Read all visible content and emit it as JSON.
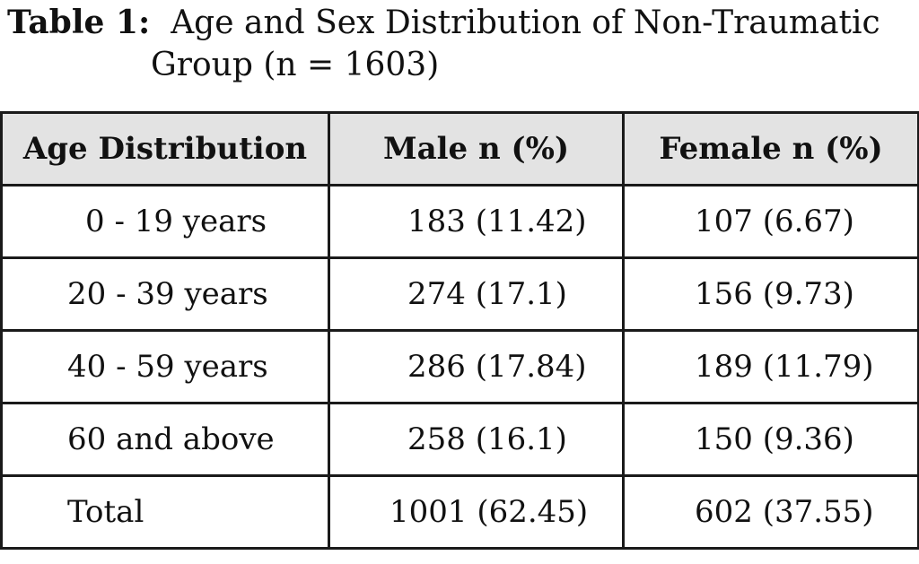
{
  "caption": {
    "label": "Table 1:",
    "title_line1": "Age and Sex Distribution of Non-Traumatic",
    "title_line2": "Group  (n = 1603)"
  },
  "table": {
    "headers": [
      "Age Distribution",
      "Male n (%)",
      "Female n (%)"
    ],
    "rows": [
      {
        "age": "0 - 19 years",
        "male": "183 (11.42)",
        "female": "107 (6.67)"
      },
      {
        "age": "20 - 39 years",
        "male": "274 (17.1)",
        "female": "156 (9.73)"
      },
      {
        "age": "40 - 59 years",
        "male": "286 (17.84)",
        "female": "189 (11.79)"
      },
      {
        "age": "60 and above",
        "male": "258 (16.1)",
        "female": "150 (9.36)"
      },
      {
        "age": "Total",
        "male": "1001 (62.45)",
        "female": "602 (37.55)"
      }
    ]
  }
}
